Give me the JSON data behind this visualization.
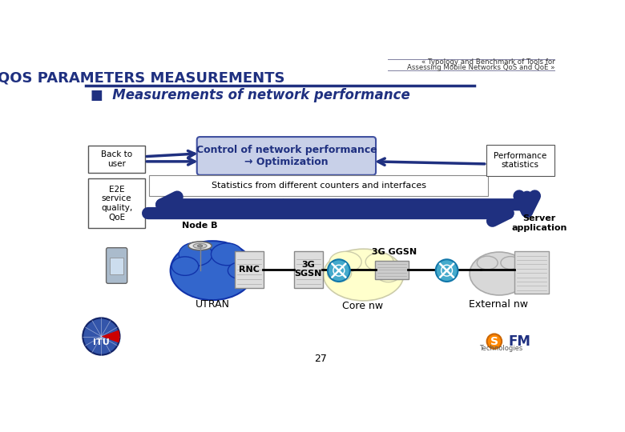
{
  "background_color": "#ffffff",
  "title_text": "QOS PARAMETERS MEASUREMENTS",
  "title_color": "#1F3080",
  "subtitle_text": "■  Measurements of network performance",
  "header_ref_line1": "« Typology and Benchmark of Tools for",
  "header_ref_line2": "Assessing Mobile Networks QoS and QoE »",
  "page_number": "27",
  "control_box_text": "Control of network performance\n→ Optimization",
  "stats_box_text": "Statistics from different counters and interfaces",
  "back_to_user_text": "Back to\nuser",
  "e2e_text": "E2E\nservice\nquality,\nQoE",
  "perf_stats_text": "Performance\nstatistics",
  "node_b_text": "Node B",
  "rnc_text": "RNC",
  "sgsn_text": "3G\nSGSN",
  "ggsn_text": "3G GGSN",
  "server_text": "Server\napplication",
  "utran_text": "UTRAN",
  "core_nw_text": "Core nw",
  "external_nw_text": "External nw",
  "dark_blue": "#1F3080",
  "ctrl_box_fill": "#C8D0E8",
  "ctrl_box_edge": "#4050A0",
  "arrow_blue": "#1F3080",
  "header_line_color": "#8080A0"
}
